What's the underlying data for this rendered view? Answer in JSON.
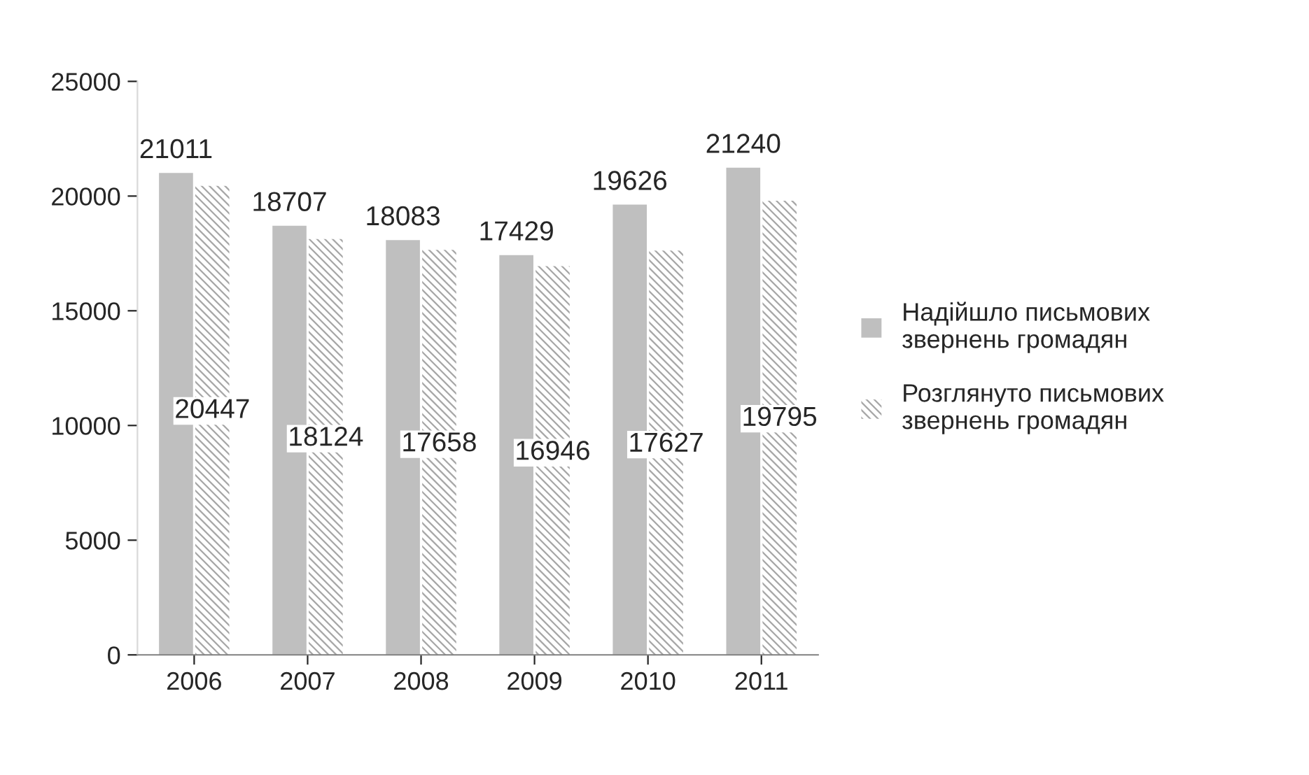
{
  "chart_data": {
    "type": "bar",
    "categories": [
      "2006",
      "2007",
      "2008",
      "2009",
      "2010",
      "2011"
    ],
    "series": [
      {
        "name": "Надійшло письмових звернень громадян",
        "color": "#bfbfbf",
        "values": [
          21011,
          18707,
          18083,
          17429,
          19626,
          21240
        ]
      },
      {
        "name": "Розглянуто письмових звернень громадян",
        "color": "#a6a6a6",
        "values": [
          20447,
          18124,
          17658,
          16946,
          17627,
          19795
        ]
      }
    ],
    "ylim": [
      0,
      25000
    ],
    "yticks": [
      0,
      5000,
      10000,
      15000,
      20000,
      25000
    ],
    "data_labels": true,
    "grid": false,
    "legend": "right"
  }
}
